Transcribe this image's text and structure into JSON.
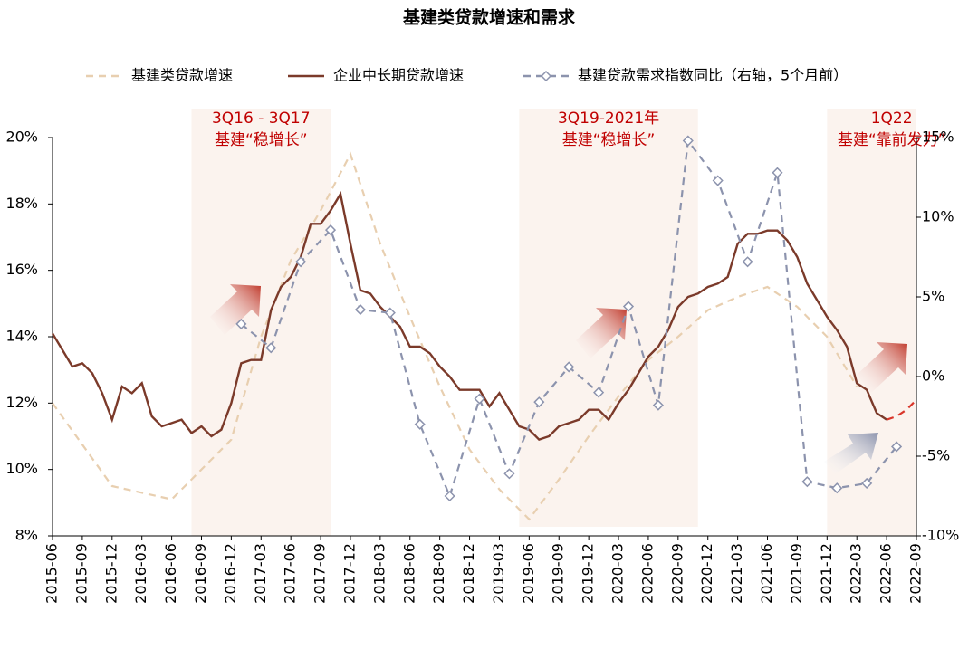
{
  "chart_data": {
    "type": "line",
    "title": "基建类贷款增速和需求",
    "xlim": [
      "2015-06",
      "2022-09"
    ],
    "xticks": [
      "2015-06",
      "2015-09",
      "2015-12",
      "2016-03",
      "2016-06",
      "2016-09",
      "2016-12",
      "2017-03",
      "2017-06",
      "2017-09",
      "2017-12",
      "2018-03",
      "2018-06",
      "2018-09",
      "2018-12",
      "2019-03",
      "2019-06",
      "2019-09",
      "2019-12",
      "2020-03",
      "2020-06",
      "2020-09",
      "2020-12",
      "2021-03",
      "2021-06",
      "2021-09",
      "2021-12",
      "2022-03",
      "2022-06",
      "2022-09"
    ],
    "ylim": [
      8,
      20
    ],
    "yticks": [
      {
        "value": 8,
        "label": "8%"
      },
      {
        "value": 10,
        "label": "10%"
      },
      {
        "value": 12,
        "label": "12%"
      },
      {
        "value": 14,
        "label": "14%"
      },
      {
        "value": 16,
        "label": "16%"
      },
      {
        "value": 18,
        "label": "18%"
      },
      {
        "value": 20,
        "label": "20%"
      }
    ],
    "y2lim": [
      -10,
      15
    ],
    "y2ticks": [
      {
        "value": -10,
        "label": "-10%"
      },
      {
        "value": -5,
        "label": "-5%"
      },
      {
        "value": 0,
        "label": "0%"
      },
      {
        "value": 5,
        "label": "5%"
      },
      {
        "value": 10,
        "label": "10%"
      },
      {
        "value": 15,
        "label": "15%"
      }
    ],
    "series": [
      {
        "name": "基建类贷款增速",
        "color": "#e8cfb0",
        "dash": true,
        "x": [
          "2015-06",
          "2015-12",
          "2016-06",
          "2016-12",
          "2017-03",
          "2017-06",
          "2017-09",
          "2017-12",
          "2018-03",
          "2018-06",
          "2018-09",
          "2018-12",
          "2019-03",
          "2019-06",
          "2019-09",
          "2019-12",
          "2020-03",
          "2020-06",
          "2020-09",
          "2020-12",
          "2021-03",
          "2021-06",
          "2021-09",
          "2021-12",
          "2022-03"
        ],
        "values": [
          12.0,
          9.5,
          9.1,
          10.9,
          14.0,
          16.3,
          17.8,
          19.5,
          16.8,
          14.6,
          12.5,
          10.6,
          9.4,
          8.5,
          9.7,
          11.0,
          12.2,
          13.3,
          14.0,
          14.8,
          15.2,
          15.5,
          14.9,
          14.0,
          12.5
        ]
      },
      {
        "name": "企业中长期贷款增速",
        "color": "#7b3a2a",
        "x": [
          "2015-06",
          "2015-07",
          "2015-08",
          "2015-09",
          "2015-10",
          "2015-11",
          "2015-12",
          "2016-01",
          "2016-02",
          "2016-03",
          "2016-04",
          "2016-05",
          "2016-06",
          "2016-07",
          "2016-08",
          "2016-09",
          "2016-10",
          "2016-11",
          "2016-12",
          "2017-01",
          "2017-02",
          "2017-03",
          "2017-04",
          "2017-05",
          "2017-06",
          "2017-07",
          "2017-08",
          "2017-09",
          "2017-10",
          "2017-11",
          "2017-12",
          "2018-01",
          "2018-02",
          "2018-03",
          "2018-04",
          "2018-05",
          "2018-06",
          "2018-07",
          "2018-08",
          "2018-09",
          "2018-10",
          "2018-11",
          "2018-12",
          "2019-01",
          "2019-02",
          "2019-03",
          "2019-04",
          "2019-05",
          "2019-06",
          "2019-07",
          "2019-08",
          "2019-09",
          "2019-10",
          "2019-11",
          "2019-12",
          "2020-01",
          "2020-02",
          "2020-03",
          "2020-04",
          "2020-05",
          "2020-06",
          "2020-07",
          "2020-08",
          "2020-09",
          "2020-10",
          "2020-11",
          "2020-12",
          "2021-01",
          "2021-02",
          "2021-03",
          "2021-04",
          "2021-05",
          "2021-06",
          "2021-07",
          "2021-08",
          "2021-09",
          "2021-10",
          "2021-11",
          "2021-12",
          "2022-01",
          "2022-02",
          "2022-03",
          "2022-04",
          "2022-05",
          "2022-06"
        ],
        "values": [
          14.1,
          13.6,
          13.1,
          13.2,
          12.9,
          12.3,
          11.5,
          12.5,
          12.3,
          12.6,
          11.6,
          11.3,
          11.4,
          11.5,
          11.1,
          11.3,
          11.0,
          11.2,
          12.0,
          13.2,
          13.3,
          13.3,
          14.8,
          15.5,
          15.8,
          16.4,
          17.4,
          17.4,
          17.8,
          18.3,
          16.8,
          15.4,
          15.3,
          14.9,
          14.6,
          14.3,
          13.7,
          13.7,
          13.5,
          13.1,
          12.8,
          12.4,
          12.4,
          12.4,
          11.9,
          12.3,
          11.8,
          11.3,
          11.2,
          10.9,
          11.0,
          11.3,
          11.4,
          11.5,
          11.8,
          11.8,
          11.5,
          12.0,
          12.4,
          12.9,
          13.4,
          13.7,
          14.2,
          14.9,
          15.2,
          15.3,
          15.5,
          15.6,
          15.8,
          16.8,
          17.1,
          17.1,
          17.2,
          17.2,
          16.9,
          16.4,
          15.6,
          15.1,
          14.6,
          14.2,
          13.7,
          12.6,
          12.4,
          11.7,
          11.5
        ]
      },
      {
        "color": "#d9362b",
        "dash": true,
        "x": [
          "2022-06",
          "2022-07",
          "2022-08",
          "2022-09"
        ],
        "values": [
          11.5,
          11.6,
          11.8,
          12.1
        ]
      },
      {
        "name": "基建贷款需求指数同比（右轴，5个月前）",
        "color": "#8c93ad",
        "dash": true,
        "marker": "diamond",
        "axis": "y2",
        "x": [
          "2017-01",
          "2017-04",
          "2017-07",
          "2017-10",
          "2018-01",
          "2018-04",
          "2018-07",
          "2018-10",
          "2019-01",
          "2019-04",
          "2019-07",
          "2019-10",
          "2020-01",
          "2020-04",
          "2020-07",
          "2020-10",
          "2021-01",
          "2021-04",
          "2021-07",
          "2021-10",
          "2022-01",
          "2022-04",
          "2022-07"
        ],
        "values": [
          3.3,
          1.8,
          7.2,
          9.2,
          4.2,
          4.0,
          -3.0,
          -7.5,
          -1.4,
          -6.1,
          -1.6,
          0.6,
          -1.0,
          4.4,
          -1.8,
          14.8,
          12.3,
          7.2,
          12.8,
          -6.6,
          -7.0,
          -6.7,
          -4.4
        ]
      }
    ],
    "spans": [
      {
        "start": "2016-08",
        "end": "2017-10",
        "label": [
          "3Q16 - 3Q17",
          "基建“稳增长”"
        ]
      },
      {
        "start": "2019-05",
        "end": "2020-11",
        "label": [
          "3Q19-2021年",
          "基建“稳增长”"
        ]
      },
      {
        "start": "2021-12",
        "end": "2022-09",
        "label": [
          "1Q22",
          "基建“靠前发力”"
        ]
      }
    ]
  }
}
